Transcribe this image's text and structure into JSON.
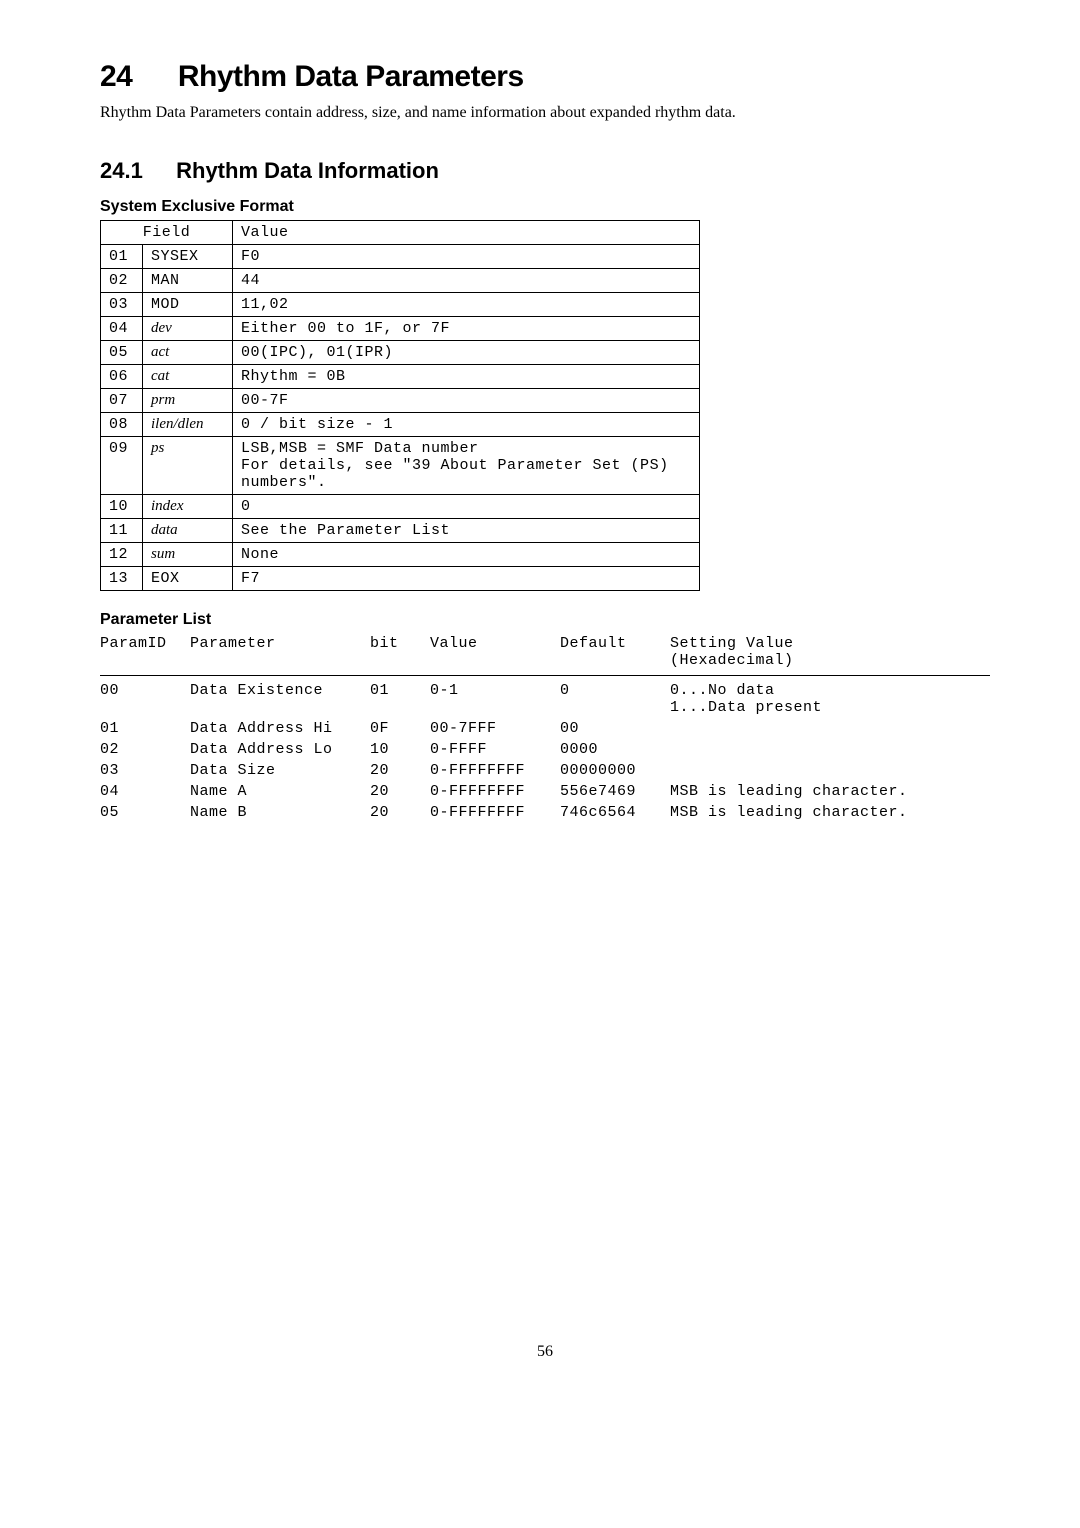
{
  "section": {
    "number": "24",
    "title": "Rhythm Data Parameters",
    "intro": "Rhythm Data Parameters contain address, size, and name information about expanded rhythm data."
  },
  "subsection": {
    "number": "24.1",
    "title": "Rhythm Data Information"
  },
  "sef": {
    "heading": "System Exclusive Format",
    "head_field": "Field",
    "head_value": "Value",
    "rows": [
      {
        "n": "01",
        "f": "SYSEX",
        "ftype": "mono",
        "v": "F0"
      },
      {
        "n": "02",
        "f": "MAN",
        "ftype": "mono",
        "v": "44"
      },
      {
        "n": "03",
        "f": "MOD",
        "ftype": "mono",
        "v": "11,02"
      },
      {
        "n": "04",
        "f": "dev",
        "ftype": "ital",
        "v": "Either 00 to 1F, or 7F"
      },
      {
        "n": "05",
        "f": "act",
        "ftype": "ital",
        "v": "00(IPC), 01(IPR)"
      },
      {
        "n": "06",
        "f": "cat",
        "ftype": "ital",
        "v": "Rhythm = 0B"
      },
      {
        "n": "07",
        "f": "prm",
        "ftype": "ital",
        "v": "00-7F"
      },
      {
        "n": "08",
        "f": "ilen/dlen",
        "ftype": "ital",
        "v": "0 / bit size - 1"
      },
      {
        "n": "09",
        "f": "ps",
        "ftype": "ital",
        "v": "LSB,MSB = SMF Data number\nFor details, see \"39 About Parameter Set (PS) numbers\"."
      },
      {
        "n": "10",
        "f": "index",
        "ftype": "ital",
        "v": "0"
      },
      {
        "n": "11",
        "f": "data",
        "ftype": "ital",
        "v": "See the Parameter List"
      },
      {
        "n": "12",
        "f": "sum",
        "ftype": "ital",
        "v": "None"
      },
      {
        "n": "13",
        "f": "EOX",
        "ftype": "mono",
        "v": "F7"
      }
    ]
  },
  "plist": {
    "heading": "Parameter List",
    "head": {
      "pid": "ParamID",
      "param": "Parameter",
      "bit": "bit",
      "value": "Value",
      "default": "Default",
      "setting1": "Setting Value",
      "setting2": "(Hexadecimal)"
    },
    "rows": [
      {
        "pid": "00",
        "p1": "Data",
        "p2": "Existence",
        "bit": "01",
        "val": "0-1",
        "def": "0",
        "set1": "0...No data",
        "set2": "1...Data present"
      },
      {
        "pid": "01",
        "p1": "Data",
        "p2": "Address Hi",
        "bit": "0F",
        "val": "00-7FFF",
        "def": "00",
        "set1": "",
        "set2": ""
      },
      {
        "pid": "02",
        "p1": "Data",
        "p2": "Address Lo",
        "bit": "10",
        "val": "0-FFFF",
        "def": "0000",
        "set1": "",
        "set2": ""
      },
      {
        "pid": "03",
        "p1": "Data",
        "p2": "Size",
        "bit": "20",
        "val": "0-FFFFFFFF",
        "def": "00000000",
        "set1": "",
        "set2": ""
      },
      {
        "pid": "04",
        "p1": "Name",
        "p2": "A",
        "bit": "20",
        "val": "0-FFFFFFFF",
        "def": "556e7469",
        "set1": "MSB is leading character.",
        "set2": ""
      },
      {
        "pid": "05",
        "p1": "Name",
        "p2": "B",
        "bit": "20",
        "val": "0-FFFFFFFF",
        "def": "746c6564",
        "set1": "MSB is leading character.",
        "set2": ""
      }
    ]
  },
  "pageNumber": "56"
}
